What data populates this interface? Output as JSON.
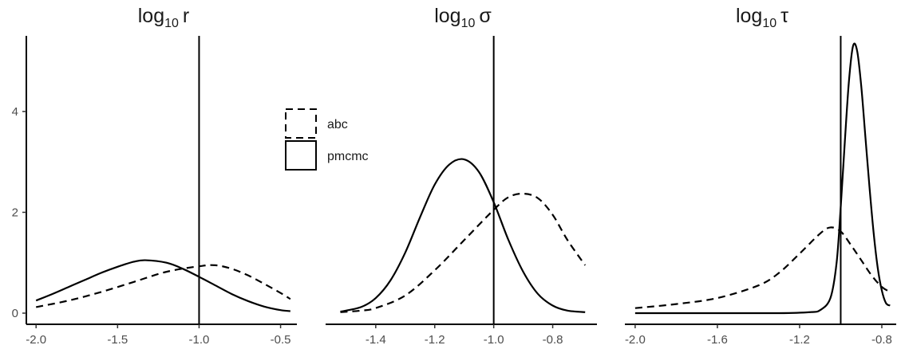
{
  "chart_data": [
    {
      "type": "line",
      "title": {
        "base": "log",
        "sub": "10",
        "symbol": "r"
      },
      "xlim": [
        -2.05,
        -0.4
      ],
      "ylim": [
        0,
        5.5
      ],
      "x_ticks": [
        -2.0,
        -1.5,
        -1.0,
        -0.5
      ],
      "x_tick_labels": [
        "-2.0",
        "-1.5",
        "-1.0",
        "-0.5"
      ],
      "y_ticks": [
        0,
        2,
        4
      ],
      "y_tick_labels": [
        "0",
        "2",
        "4"
      ],
      "vline": -1.0,
      "series": [
        {
          "name": "abc",
          "dash": "dashed",
          "x": [
            -2.0,
            -1.8,
            -1.6,
            -1.4,
            -1.2,
            -1.0,
            -0.9,
            -0.8,
            -0.7,
            -0.6,
            -0.5,
            -0.44
          ],
          "y": [
            0.12,
            0.25,
            0.42,
            0.62,
            0.82,
            0.93,
            0.95,
            0.88,
            0.75,
            0.58,
            0.4,
            0.28
          ]
        },
        {
          "name": "pmcmc",
          "dash": "solid",
          "x": [
            -2.0,
            -1.9,
            -1.8,
            -1.7,
            -1.6,
            -1.5,
            -1.4,
            -1.33,
            -1.2,
            -1.1,
            -1.0,
            -0.9,
            -0.8,
            -0.7,
            -0.6,
            -0.5,
            -0.44
          ],
          "y": [
            0.25,
            0.38,
            0.52,
            0.66,
            0.8,
            0.92,
            1.02,
            1.05,
            1.0,
            0.88,
            0.72,
            0.55,
            0.38,
            0.24,
            0.13,
            0.06,
            0.04
          ]
        }
      ]
    },
    {
      "type": "line",
      "title": {
        "base": "log",
        "sub": "10",
        "symbol": "σ"
      },
      "xlim": [
        -1.57,
        -0.65
      ],
      "ylim": [
        0,
        5.5
      ],
      "x_ticks": [
        -1.4,
        -1.2,
        -1.0,
        -0.8
      ],
      "x_tick_labels": [
        "-1.4",
        "-1.2",
        "-1.0",
        "-0.8"
      ],
      "vline": -1.0,
      "series": [
        {
          "name": "abc",
          "dash": "dashed",
          "x": [
            -1.52,
            -1.45,
            -1.4,
            -1.3,
            -1.2,
            -1.1,
            -1.0,
            -0.95,
            -0.9,
            -0.85,
            -0.8,
            -0.75,
            -0.69
          ],
          "y": [
            0.02,
            0.05,
            0.1,
            0.35,
            0.85,
            1.45,
            2.05,
            2.3,
            2.37,
            2.28,
            1.95,
            1.45,
            0.95
          ]
        },
        {
          "name": "pmcmc",
          "dash": "solid",
          "x": [
            -1.52,
            -1.45,
            -1.4,
            -1.35,
            -1.3,
            -1.25,
            -1.2,
            -1.15,
            -1.1,
            -1.05,
            -1.0,
            -0.95,
            -0.9,
            -0.85,
            -0.8,
            -0.75,
            -0.69
          ],
          "y": [
            0.03,
            0.12,
            0.3,
            0.65,
            1.2,
            1.9,
            2.55,
            2.95,
            3.05,
            2.8,
            2.2,
            1.45,
            0.82,
            0.38,
            0.15,
            0.05,
            0.02
          ]
        }
      ]
    },
    {
      "type": "line",
      "title": {
        "base": "log",
        "sub": "10",
        "symbol": "τ"
      },
      "xlim": [
        -2.05,
        -0.73
      ],
      "ylim": [
        0,
        5.5
      ],
      "x_ticks": [
        -2.0,
        -1.6,
        -1.2,
        -0.8
      ],
      "x_tick_labels": [
        "-2.0",
        "-1.6",
        "-1.2",
        "-0.8"
      ],
      "vline": -1.0,
      "series": [
        {
          "name": "abc",
          "dash": "dashed",
          "x": [
            -2.0,
            -1.8,
            -1.6,
            -1.4,
            -1.3,
            -1.2,
            -1.1,
            -1.05,
            -1.0,
            -0.95,
            -0.9,
            -0.85,
            -0.8,
            -0.76
          ],
          "y": [
            0.1,
            0.18,
            0.3,
            0.55,
            0.8,
            1.18,
            1.58,
            1.7,
            1.62,
            1.35,
            1.05,
            0.75,
            0.52,
            0.42
          ]
        },
        {
          "name": "pmcmc",
          "dash": "solid",
          "x": [
            -2.0,
            -1.6,
            -1.3,
            -1.15,
            -1.1,
            -1.05,
            -1.02,
            -1.0,
            -0.98,
            -0.96,
            -0.94,
            -0.92,
            -0.9,
            -0.88,
            -0.86,
            -0.84,
            -0.82,
            -0.8,
            -0.78,
            -0.76
          ],
          "y": [
            0.0,
            0.0,
            0.0,
            0.02,
            0.06,
            0.3,
            1.0,
            2.1,
            3.4,
            4.6,
            5.3,
            5.2,
            4.5,
            3.5,
            2.5,
            1.6,
            0.9,
            0.45,
            0.2,
            0.15
          ]
        }
      ]
    }
  ],
  "legend": [
    {
      "label": "abc",
      "dash": "dashed"
    },
    {
      "label": "pmcmc",
      "dash": "solid"
    }
  ]
}
